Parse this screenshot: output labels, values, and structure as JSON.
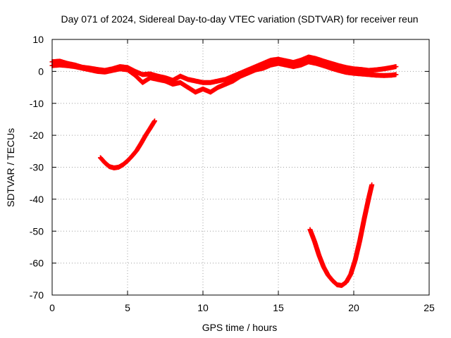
{
  "chart_data": {
    "type": "scatter",
    "title": "Day 071 of 2024, Sidereal Day-to-day VTEC variation (SDTVAR) for receiver reun",
    "xlabel": "GPS time / hours",
    "ylabel": "SDTVAR / TECUs",
    "xlim": [
      0,
      25
    ],
    "ylim": [
      -70,
      10
    ],
    "xticks": [
      0,
      5,
      10,
      15,
      20,
      25
    ],
    "yticks": [
      10,
      0,
      -10,
      -20,
      -30,
      -40,
      -50,
      -60,
      -70
    ],
    "grid": true,
    "marker": "+",
    "color": "#ff0000",
    "series": [
      {
        "name": "band-upper",
        "x": [
          0.0,
          0.5,
          1.0,
          1.5,
          2.0,
          2.5,
          3.0,
          3.5,
          4.0,
          4.5,
          5.0,
          5.5,
          6.0,
          6.5,
          7.0,
          7.5,
          8.0,
          8.5,
          9.0,
          9.5,
          10.0,
          10.5,
          11.0,
          11.5,
          12.0,
          12.5,
          13.0,
          13.5,
          14.0,
          14.5,
          15.0,
          15.5,
          16.0,
          16.5,
          17.0,
          17.5,
          18.0,
          18.5,
          19.0,
          19.5,
          20.0,
          20.5,
          21.0,
          21.5,
          22.0,
          22.5,
          22.8
        ],
        "y": [
          3.0,
          3.2,
          2.5,
          2.0,
          1.3,
          1.0,
          0.6,
          0.3,
          0.8,
          1.5,
          1.2,
          0.0,
          -1.0,
          -0.8,
          -1.5,
          -2.0,
          -2.8,
          -1.5,
          -2.5,
          -3.0,
          -3.5,
          -3.5,
          -3.0,
          -2.5,
          -1.5,
          -0.5,
          0.5,
          1.5,
          2.5,
          3.5,
          3.8,
          3.3,
          2.8,
          3.5,
          4.5,
          4.0,
          3.2,
          2.5,
          1.8,
          1.2,
          0.8,
          0.6,
          0.3,
          0.5,
          0.8,
          1.2,
          1.5
        ]
      },
      {
        "name": "band-lower",
        "x": [
          0.0,
          0.5,
          1.0,
          1.5,
          2.0,
          2.5,
          3.0,
          3.5,
          4.0,
          4.5,
          5.0,
          5.5,
          6.0,
          6.5,
          7.0,
          7.5,
          8.0,
          8.5,
          9.0,
          9.5,
          10.0,
          10.5,
          11.0,
          11.5,
          12.0,
          12.5,
          13.0,
          13.5,
          14.0,
          14.5,
          15.0,
          15.5,
          16.0,
          16.5,
          17.0,
          17.5,
          18.0,
          18.5,
          19.0,
          19.5,
          20.0,
          20.5,
          21.0,
          21.5,
          22.0,
          22.5,
          22.8
        ],
        "y": [
          1.8,
          2.0,
          1.8,
          1.5,
          1.0,
          0.5,
          0.0,
          -0.2,
          0.3,
          0.8,
          0.5,
          -1.2,
          -3.5,
          -2.0,
          -2.5,
          -3.0,
          -4.0,
          -3.5,
          -5.0,
          -6.5,
          -5.5,
          -6.5,
          -5.0,
          -4.0,
          -3.0,
          -1.5,
          -0.5,
          0.5,
          1.0,
          2.0,
          2.5,
          2.0,
          1.5,
          2.0,
          3.0,
          2.5,
          1.8,
          1.0,
          0.3,
          -0.3,
          -0.6,
          -0.8,
          -1.0,
          -1.2,
          -1.3,
          -1.2,
          -1.0
        ]
      },
      {
        "name": "curve-1",
        "x": [
          3.2,
          3.5,
          3.8,
          4.1,
          4.4,
          4.7,
          5.0,
          5.3,
          5.6,
          5.9,
          6.2,
          6.5,
          6.8
        ],
        "y": [
          -27.0,
          -28.6,
          -29.8,
          -30.2,
          -30.0,
          -29.2,
          -28.0,
          -26.5,
          -24.8,
          -22.5,
          -20.0,
          -17.8,
          -15.5
        ]
      },
      {
        "name": "curve-2",
        "x": [
          17.1,
          17.4,
          17.7,
          18.0,
          18.3,
          18.6,
          18.9,
          19.2,
          19.5,
          19.8,
          20.1,
          20.4,
          20.7,
          21.0,
          21.2
        ],
        "y": [
          -49.5,
          -53.2,
          -57.6,
          -61.2,
          -63.8,
          -65.5,
          -66.8,
          -67.0,
          -66.0,
          -63.5,
          -59.0,
          -53.0,
          -46.0,
          -39.5,
          -35.5
        ]
      }
    ]
  }
}
